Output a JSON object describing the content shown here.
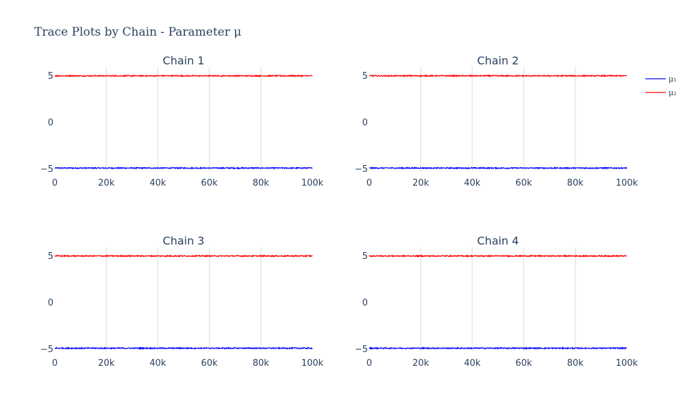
{
  "chart_data": {
    "type": "line",
    "title": "Trace Plots by Chain - Parameter μ",
    "legend_position": "top-right",
    "grid": true,
    "legend": [
      {
        "name": "μ₁",
        "color": "#0000ff"
      },
      {
        "name": "μ₂",
        "color": "#ff0000"
      }
    ],
    "xlim": [
      0,
      100000
    ],
    "ylim": [
      -5,
      5
    ],
    "x_ticks": [
      0,
      20000,
      40000,
      60000,
      80000,
      100000
    ],
    "x_tick_labels": [
      "0",
      "20k",
      "40k",
      "60k",
      "80k",
      "100k"
    ],
    "y_ticks": [
      -5,
      0,
      5
    ],
    "y_tick_labels": [
      "−5",
      "0",
      "5"
    ],
    "panels": [
      {
        "title": "Chain 1",
        "series": [
          {
            "name": "μ₁",
            "color": "#0000ff",
            "x_range": [
              0,
              100000
            ],
            "mean": -4.95,
            "spread": 0.06
          },
          {
            "name": "μ₂",
            "color": "#ff0000",
            "x_range": [
              0,
              100000
            ],
            "mean": 4.95,
            "spread": 0.06
          }
        ]
      },
      {
        "title": "Chain 2",
        "series": [
          {
            "name": "μ₁",
            "color": "#0000ff",
            "x_range": [
              0,
              100000
            ],
            "mean": -4.95,
            "spread": 0.06
          },
          {
            "name": "μ₂",
            "color": "#ff0000",
            "x_range": [
              0,
              100000
            ],
            "mean": 4.95,
            "spread": 0.06
          }
        ]
      },
      {
        "title": "Chain 3",
        "series": [
          {
            "name": "μ₁",
            "color": "#0000ff",
            "x_range": [
              0,
              100000
            ],
            "mean": -4.95,
            "spread": 0.06
          },
          {
            "name": "μ₂",
            "color": "#ff0000",
            "x_range": [
              0,
              100000
            ],
            "mean": 4.95,
            "spread": 0.06
          }
        ]
      },
      {
        "title": "Chain 4",
        "series": [
          {
            "name": "μ₁",
            "color": "#0000ff",
            "x_range": [
              0,
              100000
            ],
            "mean": -4.95,
            "spread": 0.06
          },
          {
            "name": "μ₂",
            "color": "#ff0000",
            "x_range": [
              0,
              100000
            ],
            "mean": 4.95,
            "spread": 0.06
          }
        ]
      }
    ]
  }
}
